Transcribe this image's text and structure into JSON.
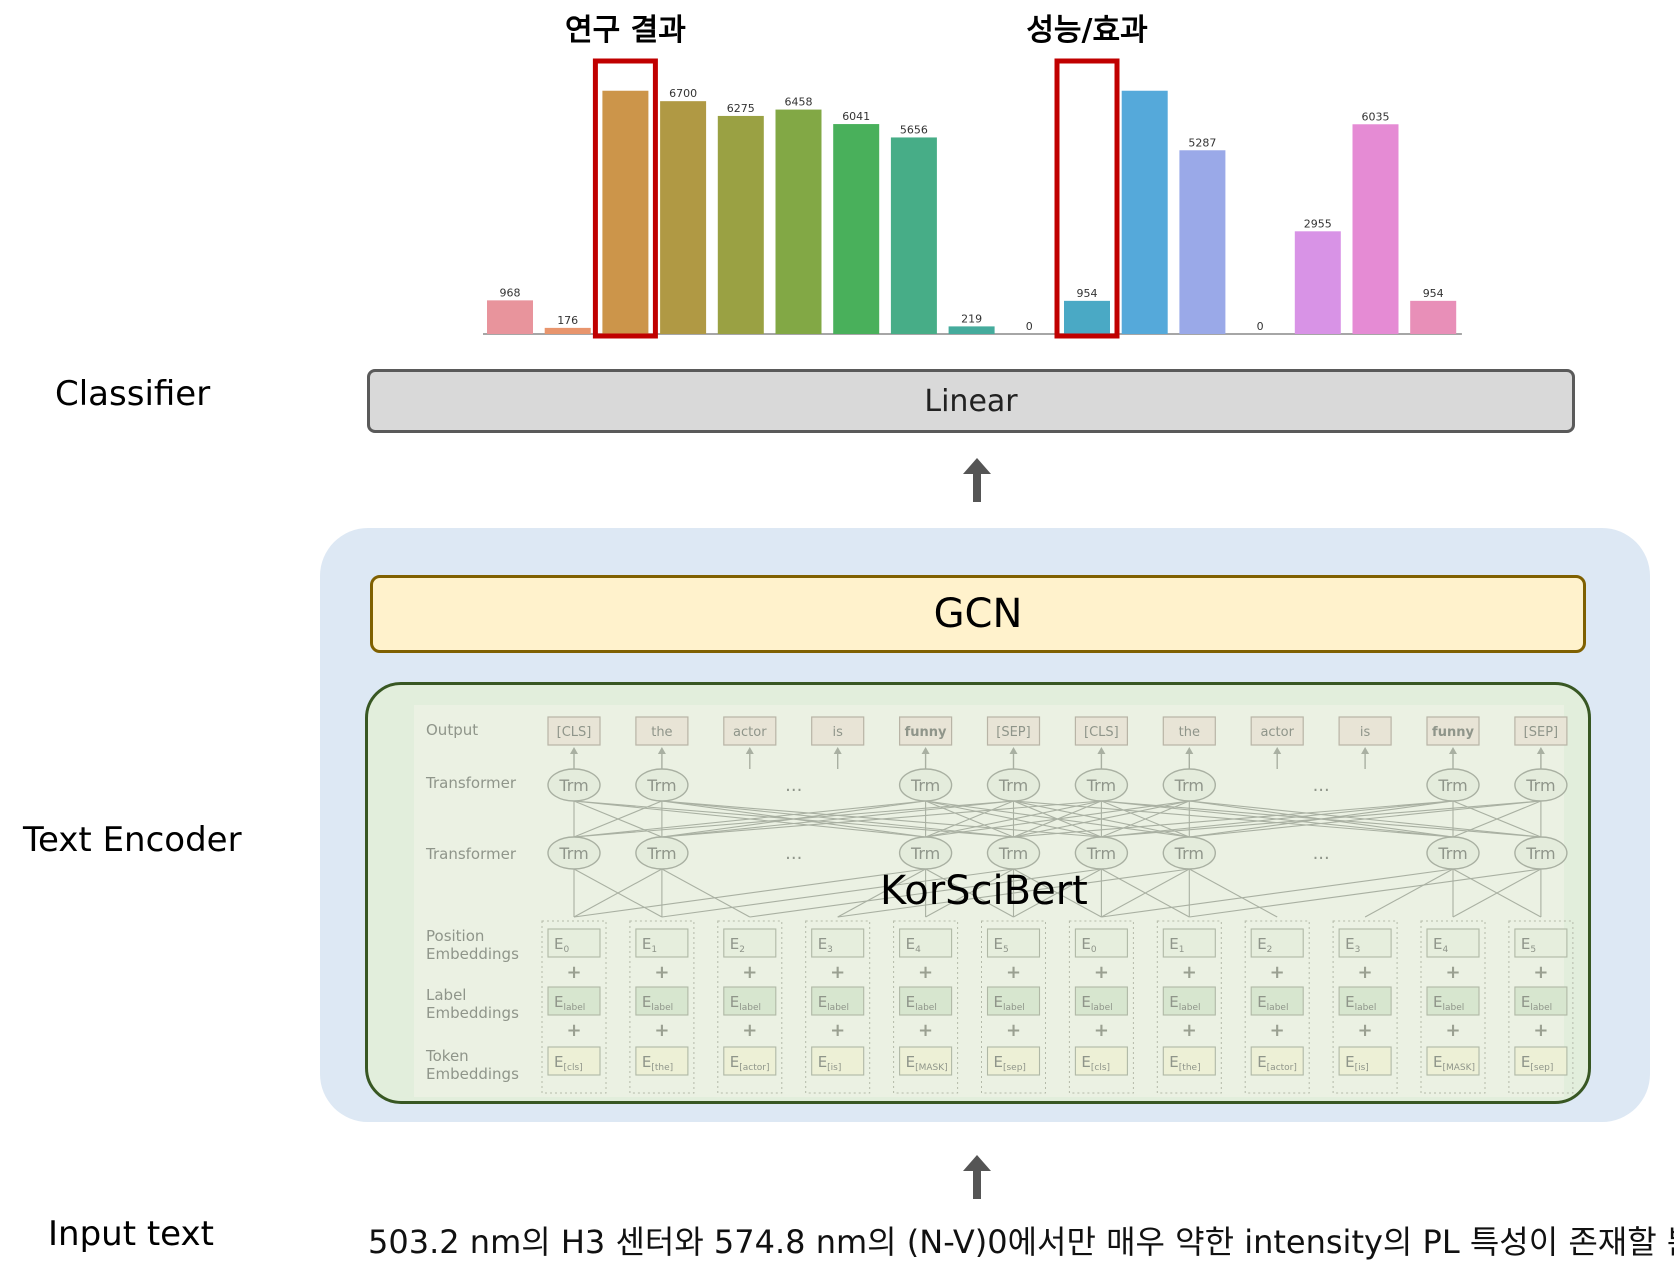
{
  "labels": {
    "classifier": "Classifier",
    "text_encoder": "Text Encoder",
    "input_text": "Input text"
  },
  "classifier": {
    "linear": "Linear"
  },
  "encoder": {
    "gcn": "GCN",
    "korscibert": "KorSciBert",
    "bert_figure": {
      "row_labels": {
        "output": "Output",
        "transformer_top": "Transformer",
        "transformer_bottom": "Transformer",
        "position": [
          "Position",
          "Embeddings"
        ],
        "label": [
          "Label",
          "Embeddings"
        ],
        "token": [
          "Token",
          "Embeddings"
        ]
      },
      "output_tokens": [
        "[CLS]",
        "the",
        "actor",
        "is",
        "funny",
        "[SEP]",
        "[CLS]",
        "the",
        "actor",
        "is",
        "funny",
        "[SEP]"
      ],
      "trm_label": "Trm",
      "ellipsis": "...",
      "plus": "+",
      "position_subscripts": [
        "0",
        "1",
        "2",
        "3",
        "4",
        "5",
        "0",
        "1",
        "2",
        "3",
        "4",
        "5"
      ],
      "label_subscript": "label",
      "token_subscripts": [
        "[cls]",
        "[the]",
        "[actor]",
        "[is]",
        "[MASK]",
        "[sep]",
        "[cls]",
        "[the]",
        "[actor]",
        "[is]",
        "[MASK]",
        "[sep]"
      ],
      "embedding_letter": "E"
    }
  },
  "input": {
    "sentence": "503.2 nm의 H3 센터와 574.8 nm의 (N-V)0에서만 매우 약한 intensity의 PL 특성이 존재할 뿐 ..."
  },
  "chart_data": {
    "type": "bar",
    "highlight_labels": [
      "연구 결과",
      "성능/효과"
    ],
    "highlighted_bars": [
      2,
      10
    ],
    "values": [
      968,
      176,
      null,
      6700,
      6275,
      6458,
      6041,
      5656,
      219,
      0,
      954,
      null,
      5287,
      0,
      2955,
      6035,
      954
    ],
    "value_labels": [
      "968",
      "176",
      "",
      "6700",
      "6275",
      "6458",
      "6041",
      "5656",
      "219",
      "0",
      "954",
      "",
      "5287",
      "0",
      "2955",
      "6035",
      "954"
    ],
    "estimated_values_unlabeled": [
      7000,
      7000
    ],
    "colors": [
      "#e8949c",
      "#e8956d",
      "#cc954a",
      "#b09944",
      "#9aa143",
      "#82a845",
      "#49b05b",
      "#47ad87",
      "#45ab9c",
      "#4aaeb5",
      "#4aa9c5",
      "#55a9da",
      "#9aa9e8",
      "#b79ee8",
      "#d893e6",
      "#e58bd4",
      "#e88fb8"
    ],
    "ylim": [
      0,
      7200
    ]
  }
}
